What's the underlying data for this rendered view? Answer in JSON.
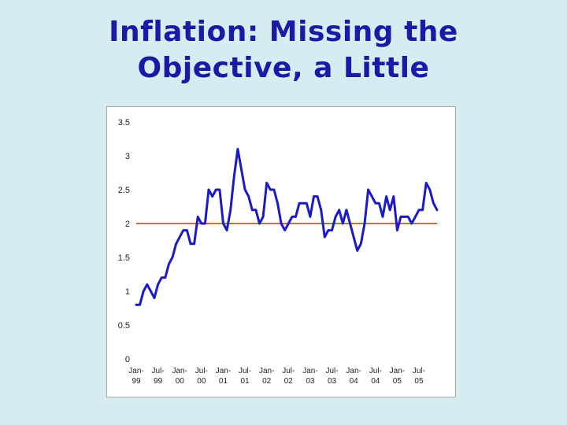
{
  "slide": {
    "title_line1": "Inflation: Missing the",
    "title_line2": "Objective, a Little"
  },
  "colors": {
    "background": "#d7ecf0",
    "title": "#1a1aa6",
    "series": "#1a1ac8",
    "target": "#e8641e"
  },
  "chart_data": {
    "type": "line",
    "title": "",
    "xlabel": "",
    "ylabel": "",
    "ylim": [
      0,
      3.5
    ],
    "yticks": [
      0,
      0.5,
      1,
      1.5,
      2,
      2.5,
      3,
      3.5
    ],
    "ytick_labels": [
      "0",
      "0.5",
      "1",
      "1.5",
      "2",
      "2.5",
      "3",
      "3.5"
    ],
    "x_start": "Jan-99",
    "x_end": "Jun-05",
    "x_tick_labels": [
      [
        "Jan-",
        "99"
      ],
      [
        "Jul-",
        "99"
      ],
      [
        "Jan-",
        "00"
      ],
      [
        "Jul-",
        "00"
      ],
      [
        "Jan-",
        "01"
      ],
      [
        "Jul-",
        "01"
      ],
      [
        "Jan-",
        "02"
      ],
      [
        "Jul-",
        "02"
      ],
      [
        "Jan-",
        "03"
      ],
      [
        "Jul-",
        "03"
      ],
      [
        "Jan-",
        "04"
      ],
      [
        "Jul-",
        "04"
      ],
      [
        "Jan-",
        "05"
      ],
      [
        "Jul-",
        "05"
      ]
    ],
    "grid": false,
    "legend": "none",
    "target_line": 2.0,
    "series": [
      {
        "values": [
          0.8,
          0.8,
          1.0,
          1.1,
          1.0,
          0.9,
          1.1,
          1.2,
          1.2,
          1.4,
          1.5,
          1.7,
          1.8,
          1.9,
          1.9,
          1.7,
          1.7,
          2.1,
          2.0,
          2.0,
          2.5,
          2.4,
          2.5,
          2.5,
          2.0,
          1.9,
          2.2,
          2.7,
          3.1,
          2.8,
          2.5,
          2.4,
          2.2,
          2.2,
          2.0,
          2.1,
          2.6,
          2.5,
          2.5,
          2.3,
          2.0,
          1.9,
          2.0,
          2.1,
          2.1,
          2.3,
          2.3,
          2.3,
          2.1,
          2.4,
          2.4,
          2.2,
          1.8,
          1.9,
          1.9,
          2.1,
          2.2,
          2.0,
          2.2,
          2.0,
          1.8,
          1.6,
          1.7,
          2.0,
          2.5,
          2.4,
          2.3,
          2.3,
          2.1,
          2.4,
          2.2,
          2.4,
          1.9,
          2.1,
          2.1,
          2.1,
          2.0,
          2.1,
          2.2,
          2.2,
          2.6,
          2.5,
          2.3,
          2.2
        ]
      }
    ]
  }
}
